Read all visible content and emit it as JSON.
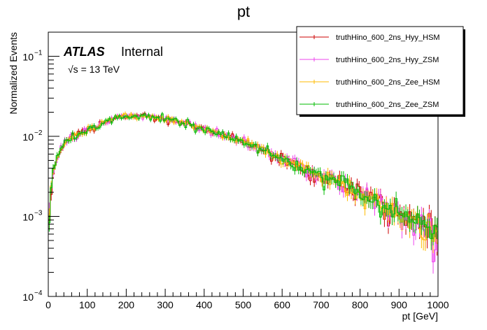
{
  "chart_data": {
    "type": "line",
    "title": "pt",
    "xlabel": "pt [GeV]",
    "ylabel": "Normalized Events",
    "xlim": [
      0,
      1000
    ],
    "ylim": [
      0.0001,
      0.2
    ],
    "yscale": "log",
    "x_ticks": [
      "0",
      "100",
      "200",
      "300",
      "400",
      "500",
      "600",
      "700",
      "800",
      "900",
      "1000"
    ],
    "y_ticks": [
      {
        "value": 0.1,
        "mantissa": "10",
        "exponent": "−1"
      },
      {
        "value": 0.01,
        "mantissa": "10",
        "exponent": "−2"
      },
      {
        "value": 0.001,
        "mantissa": "10",
        "exponent": "−3"
      },
      {
        "value": 0.0001,
        "mantissa": "10",
        "exponent": "−4"
      }
    ],
    "annotations": {
      "atlas": "ATLAS",
      "status": "Internal",
      "energy": "√s = 13 TeV"
    },
    "legend_position": "top-right",
    "shape": {
      "x": [
        0,
        10,
        20,
        30,
        40,
        60,
        80,
        100,
        140,
        180,
        220,
        260,
        300,
        340,
        380,
        420,
        460,
        500,
        540,
        580,
        620,
        660,
        700,
        740,
        780,
        820,
        860,
        900,
        940,
        980,
        1000
      ],
      "y": [
        0.0007,
        0.003,
        0.005,
        0.0068,
        0.0085,
        0.0095,
        0.0105,
        0.0118,
        0.0145,
        0.0175,
        0.0178,
        0.0175,
        0.0165,
        0.015,
        0.013,
        0.0115,
        0.01,
        0.0086,
        0.0072,
        0.0058,
        0.0048,
        0.004,
        0.0033,
        0.0027,
        0.0022,
        0.0017,
        0.0014,
        0.0011,
        0.00085,
        0.0007,
        0.0006
      ]
    },
    "series": [
      {
        "name": "truthHino_600_2ns_Hyy_HSM",
        "color": "#cc0000"
      },
      {
        "name": "truthHino_600_2ns_Hyy_ZSM",
        "color": "#ee44ee"
      },
      {
        "name": "truthHino_600_2ns_Zee_HSM",
        "color": "#ffbb00"
      },
      {
        "name": "truthHino_600_2ns_Zee_ZSM",
        "color": "#00bb00"
      }
    ]
  }
}
